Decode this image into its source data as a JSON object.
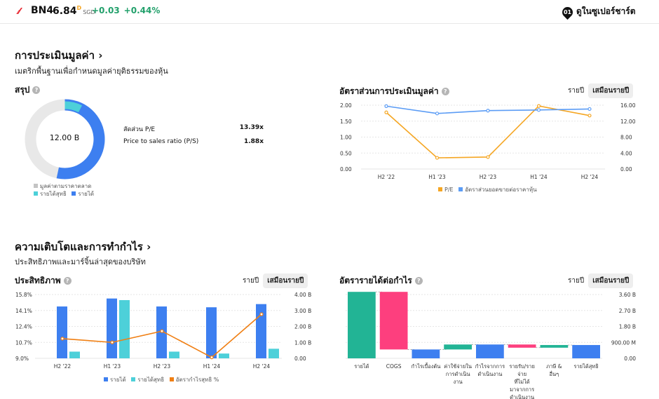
{
  "header": {
    "ticker": "BN4",
    "price": "6.84",
    "price_marker": "D",
    "currency": "SGD",
    "change_abs": "+0.03",
    "change_pct": "+0.44%",
    "supercharts_label": "ดูในซูเปอร์ชาร์ต",
    "supercharts_badge": "01"
  },
  "valuation": {
    "title": "การประเมินมูลค่า ›",
    "subtitle": "เมตริกพื้นฐานเพื่อกำหนดมูลค่ายุติธรรมของหุ้น",
    "summary_title": "สรุป",
    "donut_center": "12.00 B",
    "metrics": [
      {
        "label": "สัดส่วน P/E",
        "value": "13.39x"
      },
      {
        "label": "Price to sales ratio (P/S)",
        "value": "1.88x"
      }
    ],
    "donut_legend": {
      "market_cap": "มูลค่าตามราคาตลาด",
      "net_income": "รายได้สุทธิ",
      "revenue": "รายได้"
    },
    "ratios_title": "อัตราส่วนการประเมินมูลค่า",
    "tab_yearly": "รายปี",
    "tab_ttm": "เสมือนรายปี",
    "ratios_legend": {
      "pe": "P/E",
      "ps": "อัตราส่วนยอดขายต่อราคาหุ้น"
    }
  },
  "growth": {
    "title": "ความเติบโตและการทำกำไร ›",
    "subtitle": "ประสิทธิภาพและมาร์จิ้นล่าสุดของบริษัท",
    "perf_title": "ประสิทธิภาพ",
    "tab_yearly": "รายปี",
    "tab_ttm": "เสมือนรายปี",
    "perf_legend": {
      "revenue": "รายได้",
      "net_income": "รายได้สุทธิ",
      "margin": "อัตรากำไรสุทธิ %"
    },
    "rev_title": "อัตรารายได้ต่อกำไร",
    "rev_tab_yearly": "รายปี",
    "rev_tab_ttm": "เสมือนรายปี"
  },
  "colors": {
    "revenue": "#3d7ff0",
    "net_income": "#4dd0d9",
    "market_cap": "#e8e8e8",
    "pe": "#f5a623",
    "ps": "#5b9cf5",
    "margin": "#f07f13",
    "green": "#22b495",
    "pink": "#fd3f7e"
  },
  "chart_data": [
    {
      "type": "pie",
      "categories": [
        "มูลค่าตามราคาตลาด",
        "รายได้สุทธิ",
        "รายได้"
      ],
      "values": [
        12.0,
        0.9,
        6.4
      ],
      "center_label": "12.00 B"
    },
    {
      "type": "line",
      "title": "อัตราส่วนการประเมินมูลค่า",
      "x": [
        "H2 '22",
        "H1 '23",
        "H2 '23",
        "H1 '24",
        "H2 '24"
      ],
      "series": [
        {
          "name": "P/E",
          "axis": "right",
          "values": [
            14.2,
            2.8,
            3.0,
            15.8,
            13.4
          ]
        },
        {
          "name": "อัตราส่วนยอดขายต่อราคาหุ้น",
          "axis": "left",
          "values": [
            1.97,
            1.74,
            1.83,
            1.85,
            1.88
          ]
        }
      ],
      "y_left_ticks": [
        "2.00",
        "1.50",
        "1.00",
        "0.50",
        "0.00"
      ],
      "y_right_ticks": [
        "16.00",
        "12.00",
        "8.00",
        "4.00",
        "0.00"
      ],
      "ylim_left": [
        0,
        2
      ],
      "ylim_right": [
        0,
        16
      ]
    },
    {
      "type": "bar",
      "title": "ประสิทธิภาพ",
      "categories": [
        "H2 '22",
        "H1 '23",
        "H2 '23",
        "H1 '24",
        "H2 '24"
      ],
      "series": [
        {
          "name": "รายได้",
          "axis": "right",
          "values": [
            3.25,
            3.75,
            3.25,
            3.2,
            3.4
          ]
        },
        {
          "name": "รายได้สุทธิ",
          "axis": "right",
          "values": [
            0.42,
            3.65,
            0.42,
            0.3,
            0.6
          ]
        },
        {
          "name": "อัตรากำไรสุทธิ %",
          "axis": "left",
          "type": "line",
          "values": [
            11.1,
            10.7,
            11.9,
            9.1,
            13.7
          ]
        }
      ],
      "y_left_ticks": [
        "15.8%",
        "14.1%",
        "12.4%",
        "10.7%",
        "9.0%"
      ],
      "y_right_ticks": [
        "4.00 B",
        "3.00 B",
        "2.00 B",
        "1.00 B",
        "0.00"
      ],
      "ylim_left": [
        9.0,
        15.8
      ],
      "ylim_right": [
        0,
        4
      ]
    },
    {
      "type": "bar",
      "title": "อัตรารายได้ต่อกำไร",
      "categories": [
        "รายได้",
        "COGS",
        "กำไรเบื้องต้น",
        "ค่าใช้จ่ายใน การดำเนิน งาน",
        "กำไรจากการ ดำเนินงาน",
        "รายรับ/ราย จ่าย ที่ไม่ได้ มาจากการ ดำเนินงาน",
        "ภาษี & อื่นๆ",
        "รายได้สุทธิ"
      ],
      "waterfall": [
        {
          "start": 0,
          "end": 3.75
        },
        {
          "start": 3.75,
          "end": 0.5
        },
        {
          "start": 0,
          "end": 0.5
        },
        {
          "start": 0.5,
          "end": 0.78
        },
        {
          "start": 0,
          "end": 0.78
        },
        {
          "start": 0.78,
          "end": 0.6
        },
        {
          "start": 0.6,
          "end": 0.75
        },
        {
          "start": 0,
          "end": 0.75
        }
      ],
      "bar_colors": [
        "#22b495",
        "#fd3f7e",
        "#3d7ff0",
        "#22b495",
        "#3d7ff0",
        "#fd3f7e",
        "#22b495",
        "#3d7ff0"
      ],
      "y_right_ticks": [
        "3.60 B",
        "2.70 B",
        "1.80 B",
        "900.00 M",
        "0.00"
      ],
      "ylim": [
        0,
        3.6
      ]
    }
  ]
}
